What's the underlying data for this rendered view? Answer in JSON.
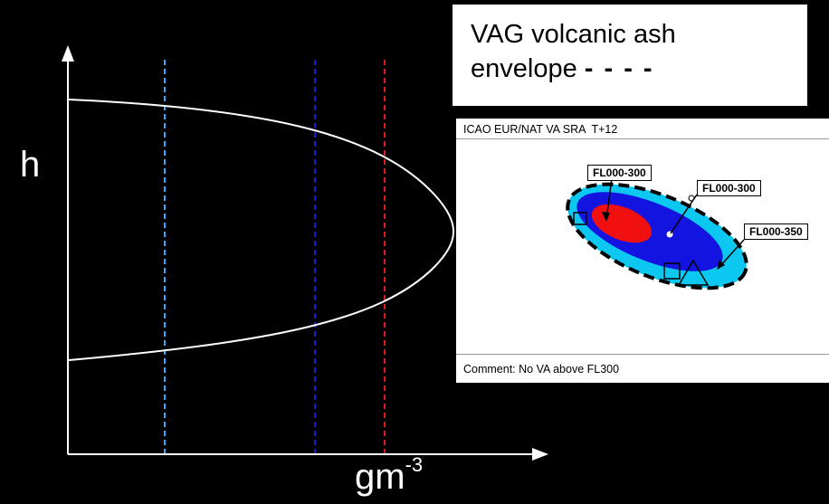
{
  "axes": {
    "y_label": "h",
    "x_label": "gm",
    "x_label_exponent": "-3"
  },
  "legend": {
    "line1": "VAG volcanic ash",
    "line2": "envelope",
    "dash": "- - - -"
  },
  "inset": {
    "title": "ICAO EUR/NAT VA SRA  T+12",
    "labels": [
      "FL000-300",
      "FL000-300",
      "FL000-350"
    ],
    "comment": "Comment: No VA above FL300"
  },
  "colors": {
    "background": "#000000",
    "curve": "#ffffff",
    "line_light_blue": "#33aaff",
    "line_blue": "#1a1ad0",
    "line_red": "#e01818",
    "ash_light_blue": "#0cc8f0",
    "ash_blue": "#1414e0",
    "ash_red": "#f01010"
  }
}
